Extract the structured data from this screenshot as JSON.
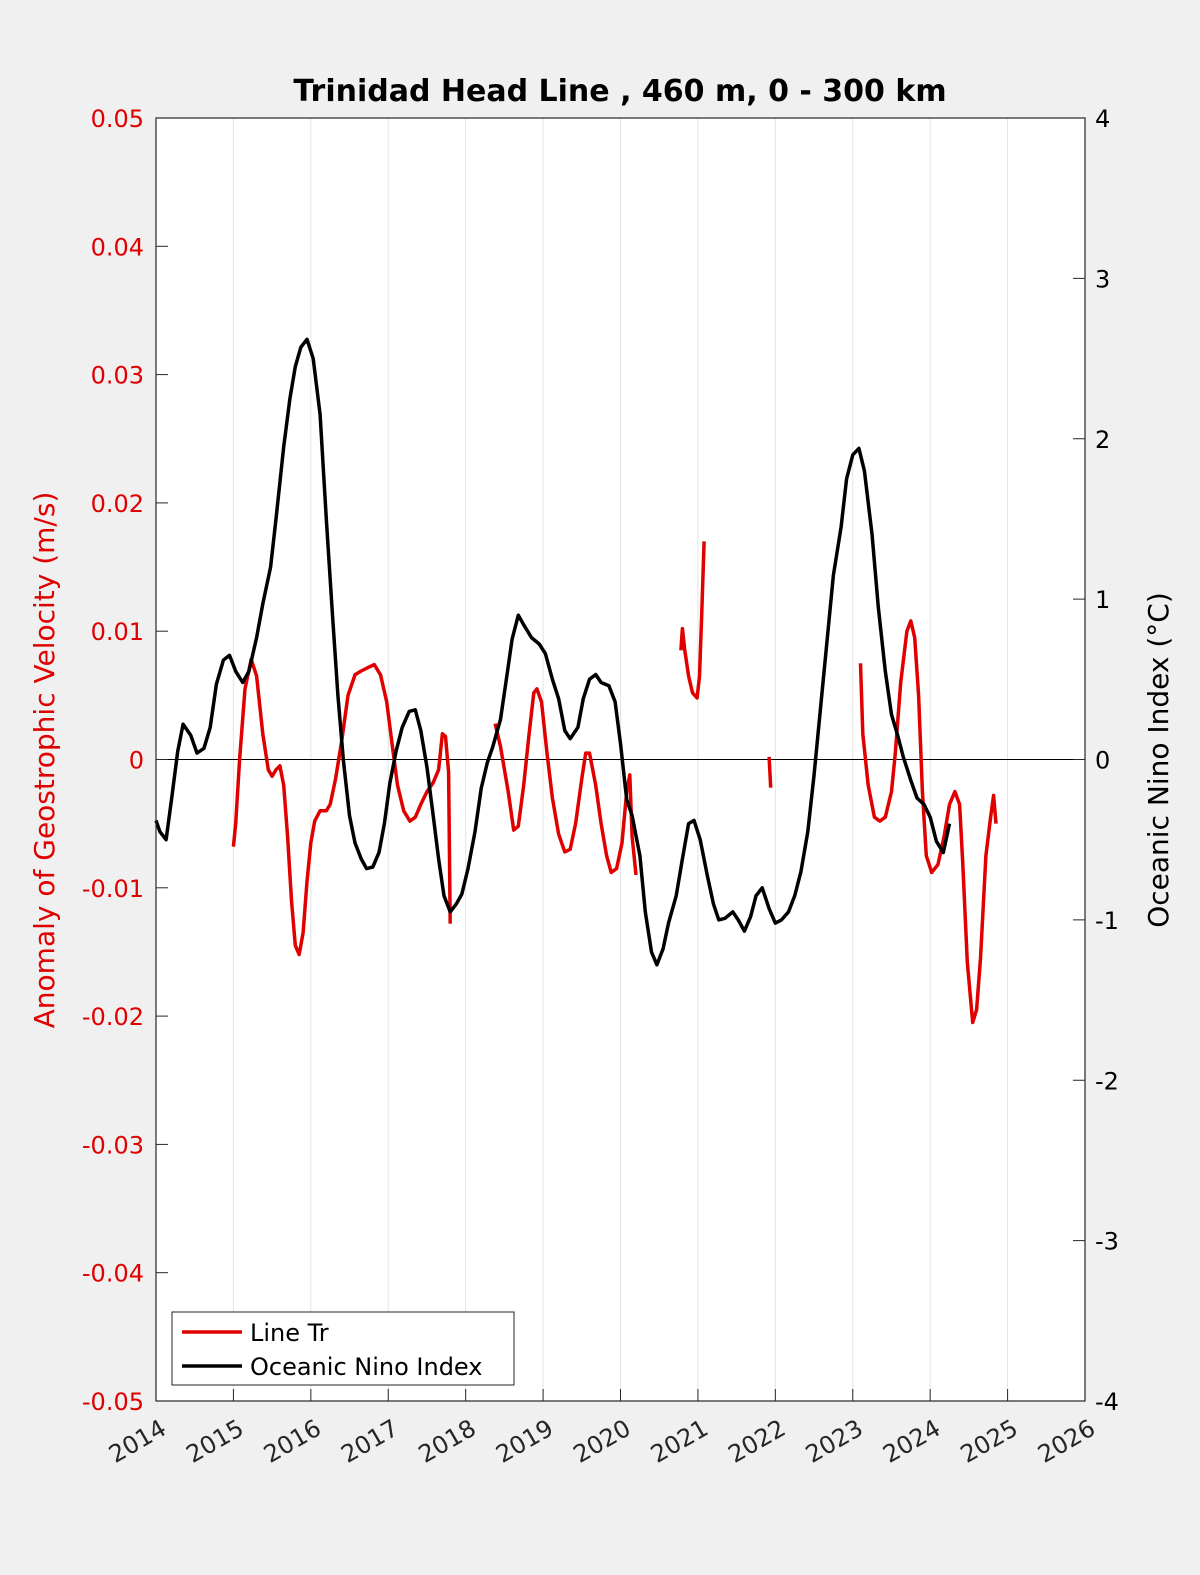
{
  "chart_data": {
    "type": "line",
    "title": "Trinidad Head Line , 460 m, 0 - 300 km",
    "ylabel_left": "Anomaly of Geostrophic Velocity (m/s)",
    "ylabel_right": "Oceanic Nino Index (°C)",
    "xlabel": "",
    "xlim": [
      2014,
      2026
    ],
    "ylim_left": [
      -0.05,
      0.05
    ],
    "ylim_right": [
      -4,
      4
    ],
    "x_ticks": [
      "2014",
      "2015",
      "2016",
      "2017",
      "2018",
      "2019",
      "2020",
      "2021",
      "2022",
      "2023",
      "2024",
      "2025",
      "2026"
    ],
    "y_left_ticks": [
      "0.05",
      "0.04",
      "0.03",
      "0.02",
      "0.01",
      "0",
      "-0.01",
      "-0.02",
      "-0.03",
      "-0.04",
      "-0.05"
    ],
    "y_right_ticks": [
      "4",
      "3",
      "2",
      "1",
      "0",
      "-1",
      "-2",
      "-3",
      "-4"
    ],
    "grid": "vertical",
    "legend_position": "bottom-left",
    "colors": {
      "line_tr": "#e00000",
      "oni": "#000000",
      "axis_left": "#e00000",
      "background": "#f0f0f0",
      "plot_bg": "#ffffff"
    },
    "series": [
      {
        "name": "Line Tr",
        "axis": "left",
        "color": "#e00000",
        "segments": [
          [
            [
              2015.0,
              -0.0068
            ],
            [
              2015.03,
              -0.005
            ],
            [
              2015.08,
              0.0
            ],
            [
              2015.15,
              0.0055
            ],
            [
              2015.23,
              0.0078
            ],
            [
              2015.3,
              0.0065
            ],
            [
              2015.38,
              0.002
            ],
            [
              2015.45,
              -0.0008
            ],
            [
              2015.5,
              -0.0013
            ],
            [
              2015.55,
              -0.0008
            ],
            [
              2015.6,
              -0.0005
            ],
            [
              2015.65,
              -0.002
            ],
            [
              2015.7,
              -0.006
            ],
            [
              2015.75,
              -0.011
            ],
            [
              2015.8,
              -0.0145
            ],
            [
              2015.85,
              -0.0152
            ],
            [
              2015.9,
              -0.0135
            ],
            [
              2015.95,
              -0.0095
            ],
            [
              2016.0,
              -0.0065
            ],
            [
              2016.05,
              -0.0048
            ],
            [
              2016.12,
              -0.004
            ],
            [
              2016.2,
              -0.004
            ],
            [
              2016.25,
              -0.0035
            ],
            [
              2016.32,
              -0.0015
            ],
            [
              2016.4,
              0.0015
            ],
            [
              2016.48,
              0.005
            ],
            [
              2016.57,
              0.0066
            ],
            [
              2016.65,
              0.0069
            ],
            [
              2016.75,
              0.0072
            ],
            [
              2016.82,
              0.0074
            ],
            [
              2016.9,
              0.0066
            ],
            [
              2016.98,
              0.0045
            ],
            [
              2017.05,
              0.0012
            ],
            [
              2017.12,
              -0.002
            ],
            [
              2017.2,
              -0.004
            ],
            [
              2017.28,
              -0.0048
            ],
            [
              2017.35,
              -0.0045
            ],
            [
              2017.42,
              -0.0035
            ],
            [
              2017.5,
              -0.0025
            ],
            [
              2017.58,
              -0.0018
            ],
            [
              2017.65,
              -0.0008
            ],
            [
              2017.7,
              0.002
            ],
            [
              2017.74,
              0.0018
            ],
            [
              2017.78,
              -0.001
            ],
            [
              2017.8,
              -0.0128
            ]
          ],
          [
            [
              2018.38,
              0.0028
            ],
            [
              2018.45,
              0.001
            ],
            [
              2018.55,
              -0.0025
            ],
            [
              2018.62,
              -0.0055
            ],
            [
              2018.68,
              -0.0052
            ],
            [
              2018.75,
              -0.002
            ],
            [
              2018.82,
              0.002
            ],
            [
              2018.88,
              0.0052
            ],
            [
              2018.92,
              0.0055
            ],
            [
              2018.98,
              0.0045
            ],
            [
              2019.05,
              0.0005
            ],
            [
              2019.12,
              -0.003
            ],
            [
              2019.2,
              -0.0058
            ],
            [
              2019.28,
              -0.0072
            ],
            [
              2019.35,
              -0.007
            ],
            [
              2019.42,
              -0.005
            ],
            [
              2019.5,
              -0.0015
            ],
            [
              2019.55,
              0.0005
            ],
            [
              2019.6,
              0.0005
            ],
            [
              2019.68,
              -0.002
            ],
            [
              2019.75,
              -0.005
            ],
            [
              2019.82,
              -0.0075
            ],
            [
              2019.88,
              -0.0088
            ],
            [
              2019.95,
              -0.0085
            ],
            [
              2020.02,
              -0.0065
            ],
            [
              2020.08,
              -0.0025
            ],
            [
              2020.12,
              -0.0012
            ],
            [
              2020.15,
              -0.006
            ],
            [
              2020.2,
              -0.009
            ]
          ],
          [
            [
              2020.78,
              0.0085
            ],
            [
              2020.8,
              0.0102
            ],
            [
              2020.83,
              0.0085
            ],
            [
              2020.88,
              0.0065
            ],
            [
              2020.93,
              0.0052
            ],
            [
              2020.99,
              0.0048
            ],
            [
              2021.02,
              0.0065
            ],
            [
              2021.05,
              0.0115
            ],
            [
              2021.08,
              0.017
            ]
          ],
          [
            [
              2021.92,
              0.0002
            ],
            [
              2021.94,
              -0.0022
            ]
          ],
          [
            [
              2023.1,
              0.0075
            ],
            [
              2023.13,
              0.002
            ],
            [
              2023.2,
              -0.002
            ],
            [
              2023.28,
              -0.0045
            ],
            [
              2023.35,
              -0.0048
            ],
            [
              2023.42,
              -0.0045
            ],
            [
              2023.5,
              -0.0025
            ],
            [
              2023.55,
              0.0005
            ],
            [
              2023.62,
              0.006
            ],
            [
              2023.7,
              0.01
            ],
            [
              2023.75,
              0.0108
            ],
            [
              2023.8,
              0.0095
            ],
            [
              2023.85,
              0.005
            ],
            [
              2023.9,
              -0.0025
            ],
            [
              2023.95,
              -0.0075
            ],
            [
              2024.02,
              -0.0088
            ],
            [
              2024.1,
              -0.0082
            ],
            [
              2024.18,
              -0.006
            ],
            [
              2024.25,
              -0.0035
            ],
            [
              2024.32,
              -0.0025
            ],
            [
              2024.38,
              -0.0035
            ],
            [
              2024.42,
              -0.008
            ],
            [
              2024.48,
              -0.0158
            ],
            [
              2024.55,
              -0.0205
            ],
            [
              2024.6,
              -0.0195
            ],
            [
              2024.65,
              -0.0155
            ],
            [
              2024.72,
              -0.0075
            ],
            [
              2024.78,
              -0.0045
            ],
            [
              2024.82,
              -0.0028
            ],
            [
              2024.85,
              -0.005
            ]
          ]
        ]
      },
      {
        "name": "Oceanic Nino Index",
        "axis": "right",
        "color": "#000000",
        "points": [
          [
            2014.0,
            -0.38
          ],
          [
            2014.05,
            -0.45
          ],
          [
            2014.13,
            -0.5
          ],
          [
            2014.2,
            -0.25
          ],
          [
            2014.28,
            0.05
          ],
          [
            2014.35,
            0.22
          ],
          [
            2014.45,
            0.15
          ],
          [
            2014.53,
            0.04
          ],
          [
            2014.62,
            0.07
          ],
          [
            2014.7,
            0.2
          ],
          [
            2014.78,
            0.47
          ],
          [
            2014.87,
            0.62
          ],
          [
            2014.95,
            0.65
          ],
          [
            2015.03,
            0.55
          ],
          [
            2015.12,
            0.48
          ],
          [
            2015.2,
            0.55
          ],
          [
            2015.3,
            0.76
          ],
          [
            2015.38,
            0.97
          ],
          [
            2015.48,
            1.2
          ],
          [
            2015.55,
            1.5
          ],
          [
            2015.65,
            1.95
          ],
          [
            2015.73,
            2.25
          ],
          [
            2015.8,
            2.45
          ],
          [
            2015.87,
            2.57
          ],
          [
            2015.95,
            2.62
          ],
          [
            2016.03,
            2.5
          ],
          [
            2016.12,
            2.15
          ],
          [
            2016.2,
            1.5
          ],
          [
            2016.28,
            0.9
          ],
          [
            2016.35,
            0.4
          ],
          [
            2016.42,
            0.0
          ],
          [
            2016.5,
            -0.35
          ],
          [
            2016.57,
            -0.52
          ],
          [
            2016.65,
            -0.62
          ],
          [
            2016.72,
            -0.68
          ],
          [
            2016.8,
            -0.67
          ],
          [
            2016.88,
            -0.58
          ],
          [
            2016.95,
            -0.4
          ],
          [
            2017.02,
            -0.15
          ],
          [
            2017.1,
            0.05
          ],
          [
            2017.18,
            0.2
          ],
          [
            2017.27,
            0.3
          ],
          [
            2017.35,
            0.31
          ],
          [
            2017.42,
            0.18
          ],
          [
            2017.5,
            -0.05
          ],
          [
            2017.58,
            -0.35
          ],
          [
            2017.65,
            -0.62
          ],
          [
            2017.72,
            -0.85
          ],
          [
            2017.8,
            -0.95
          ],
          [
            2017.88,
            -0.9
          ],
          [
            2017.95,
            -0.84
          ],
          [
            2018.03,
            -0.68
          ],
          [
            2018.12,
            -0.45
          ],
          [
            2018.2,
            -0.18
          ],
          [
            2018.28,
            -0.02
          ],
          [
            2018.35,
            0.08
          ],
          [
            2018.45,
            0.25
          ],
          [
            2018.52,
            0.48
          ],
          [
            2018.6,
            0.75
          ],
          [
            2018.68,
            0.9
          ],
          [
            2018.75,
            0.84
          ],
          [
            2018.85,
            0.76
          ],
          [
            2018.95,
            0.72
          ],
          [
            2019.03,
            0.66
          ],
          [
            2019.12,
            0.5
          ],
          [
            2019.2,
            0.38
          ],
          [
            2019.28,
            0.18
          ],
          [
            2019.35,
            0.13
          ],
          [
            2019.45,
            0.2
          ],
          [
            2019.52,
            0.38
          ],
          [
            2019.6,
            0.5
          ],
          [
            2019.68,
            0.53
          ],
          [
            2019.75,
            0.48
          ],
          [
            2019.85,
            0.46
          ],
          [
            2019.93,
            0.36
          ],
          [
            2020.0,
            0.1
          ],
          [
            2020.08,
            -0.25
          ],
          [
            2020.15,
            -0.35
          ],
          [
            2020.25,
            -0.6
          ],
          [
            2020.32,
            -0.95
          ],
          [
            2020.4,
            -1.2
          ],
          [
            2020.47,
            -1.28
          ],
          [
            2020.55,
            -1.18
          ],
          [
            2020.62,
            -1.02
          ],
          [
            2020.72,
            -0.85
          ],
          [
            2020.8,
            -0.62
          ],
          [
            2020.88,
            -0.4
          ],
          [
            2020.95,
            -0.38
          ],
          [
            2021.03,
            -0.5
          ],
          [
            2021.12,
            -0.72
          ],
          [
            2021.2,
            -0.9
          ],
          [
            2021.27,
            -1.0
          ],
          [
            2021.35,
            -0.99
          ],
          [
            2021.45,
            -0.95
          ],
          [
            2021.52,
            -1.0
          ],
          [
            2021.6,
            -1.07
          ],
          [
            2021.68,
            -0.98
          ],
          [
            2021.75,
            -0.85
          ],
          [
            2021.83,
            -0.8
          ],
          [
            2021.92,
            -0.93
          ],
          [
            2022.0,
            -1.02
          ],
          [
            2022.08,
            -1.0
          ],
          [
            2022.17,
            -0.95
          ],
          [
            2022.25,
            -0.85
          ],
          [
            2022.33,
            -0.7
          ],
          [
            2022.42,
            -0.45
          ],
          [
            2022.5,
            -0.1
          ],
          [
            2022.58,
            0.3
          ],
          [
            2022.67,
            0.75
          ],
          [
            2022.75,
            1.15
          ],
          [
            2022.85,
            1.45
          ],
          [
            2022.92,
            1.75
          ],
          [
            2023.0,
            1.9
          ],
          [
            2023.08,
            1.94
          ],
          [
            2023.15,
            1.8
          ],
          [
            2023.25,
            1.4
          ],
          [
            2023.33,
            0.95
          ],
          [
            2023.42,
            0.55
          ],
          [
            2023.5,
            0.28
          ],
          [
            2023.58,
            0.15
          ],
          [
            2023.65,
            0.02
          ],
          [
            2023.75,
            -0.13
          ],
          [
            2023.83,
            -0.24
          ],
          [
            2023.92,
            -0.28
          ],
          [
            2024.0,
            -0.36
          ],
          [
            2024.08,
            -0.51
          ],
          [
            2024.17,
            -0.58
          ],
          [
            2024.25,
            -0.4
          ]
        ]
      }
    ],
    "legend": [
      "Line Tr",
      "Oceanic Nino Index"
    ]
  }
}
